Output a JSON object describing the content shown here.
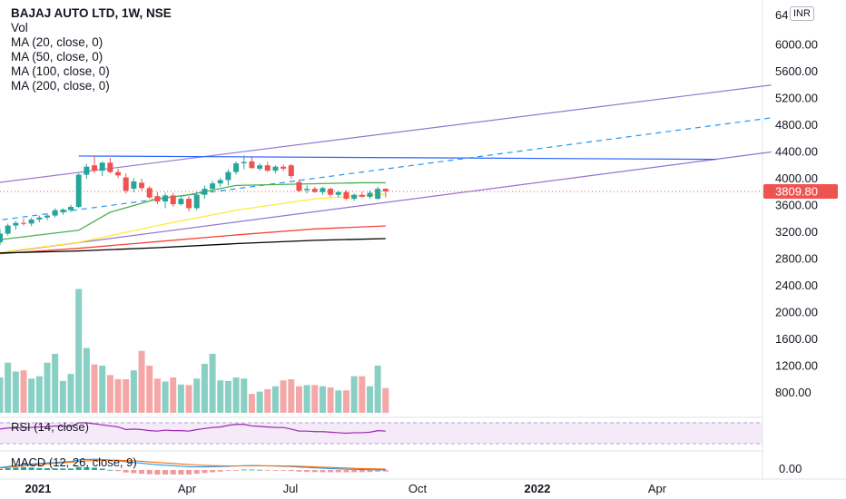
{
  "chart_data": {
    "type": "candlestick",
    "title": "BAJAJ AUTO LTD, 1W, NSE",
    "currency": "INR",
    "last_price": "3809.80",
    "legend": [
      "Vol",
      "MA (20, close, 0)",
      "MA (50, close, 0)",
      "MA (100, close, 0)",
      "MA (200, close, 0)"
    ],
    "y_axis": {
      "ticks": [
        800,
        1200,
        1600,
        2000,
        2400,
        2800,
        3200,
        3600,
        4000,
        4400,
        4800,
        5200,
        5600,
        6000
      ],
      "tick_labels": [
        "800.00",
        "1200.00",
        "1600.00",
        "2000.00",
        "2400.00",
        "2800.00",
        "3200.00",
        "3600.00",
        "4000.00",
        "4400.00",
        "4800.00",
        "5200.00",
        "5600.00",
        "6000.00"
      ],
      "top_partial_label": "64"
    },
    "x_axis": {
      "labels": [
        "2021",
        "Apr",
        "Jul",
        "Oct",
        "2022",
        "Apr"
      ]
    },
    "candles": [
      {
        "o": 3050,
        "h": 3250,
        "l": 3010,
        "c": 3180
      },
      {
        "o": 3180,
        "h": 3330,
        "l": 3150,
        "c": 3300
      },
      {
        "o": 3300,
        "h": 3370,
        "l": 3240,
        "c": 3340
      },
      {
        "o": 3340,
        "h": 3400,
        "l": 3300,
        "c": 3330
      },
      {
        "o": 3330,
        "h": 3420,
        "l": 3290,
        "c": 3390
      },
      {
        "o": 3390,
        "h": 3450,
        "l": 3350,
        "c": 3420
      },
      {
        "o": 3420,
        "h": 3480,
        "l": 3380,
        "c": 3450
      },
      {
        "o": 3450,
        "h": 3560,
        "l": 3420,
        "c": 3530
      },
      {
        "o": 3500,
        "h": 3560,
        "l": 3460,
        "c": 3540
      },
      {
        "o": 3530,
        "h": 3610,
        "l": 3500,
        "c": 3580
      },
      {
        "o": 3580,
        "h": 4080,
        "l": 3560,
        "c": 4060
      },
      {
        "o": 4060,
        "h": 4220,
        "l": 4000,
        "c": 4180
      },
      {
        "o": 4200,
        "h": 4340,
        "l": 4080,
        "c": 4120
      },
      {
        "o": 4120,
        "h": 4260,
        "l": 4040,
        "c": 4240
      },
      {
        "o": 4240,
        "h": 4310,
        "l": 4080,
        "c": 4100
      },
      {
        "o": 4100,
        "h": 4150,
        "l": 4010,
        "c": 4050
      },
      {
        "o": 4020,
        "h": 4080,
        "l": 3780,
        "c": 3820
      },
      {
        "o": 3850,
        "h": 4010,
        "l": 3800,
        "c": 3960
      },
      {
        "o": 3940,
        "h": 4000,
        "l": 3820,
        "c": 3860
      },
      {
        "o": 3860,
        "h": 3890,
        "l": 3700,
        "c": 3720
      },
      {
        "o": 3740,
        "h": 3800,
        "l": 3620,
        "c": 3660
      },
      {
        "o": 3660,
        "h": 3790,
        "l": 3560,
        "c": 3750
      },
      {
        "o": 3750,
        "h": 3790,
        "l": 3580,
        "c": 3620
      },
      {
        "o": 3620,
        "h": 3730,
        "l": 3600,
        "c": 3700
      },
      {
        "o": 3700,
        "h": 3740,
        "l": 3510,
        "c": 3560
      },
      {
        "o": 3560,
        "h": 3800,
        "l": 3530,
        "c": 3760
      },
      {
        "o": 3760,
        "h": 3900,
        "l": 3700,
        "c": 3850
      },
      {
        "o": 3850,
        "h": 3970,
        "l": 3800,
        "c": 3930
      },
      {
        "o": 3930,
        "h": 4010,
        "l": 3880,
        "c": 3980
      },
      {
        "o": 3980,
        "h": 4140,
        "l": 3900,
        "c": 4100
      },
      {
        "o": 4100,
        "h": 4260,
        "l": 4060,
        "c": 4230
      },
      {
        "o": 4230,
        "h": 4350,
        "l": 4140,
        "c": 4250
      },
      {
        "o": 4260,
        "h": 4320,
        "l": 4150,
        "c": 4160
      },
      {
        "o": 4150,
        "h": 4230,
        "l": 4120,
        "c": 4200
      },
      {
        "o": 4200,
        "h": 4250,
        "l": 4100,
        "c": 4120
      },
      {
        "o": 4120,
        "h": 4200,
        "l": 4080,
        "c": 4180
      },
      {
        "o": 4180,
        "h": 4210,
        "l": 4110,
        "c": 4150
      },
      {
        "o": 4200,
        "h": 4220,
        "l": 4000,
        "c": 4040
      },
      {
        "o": 3950,
        "h": 3990,
        "l": 3800,
        "c": 3820
      },
      {
        "o": 3830,
        "h": 3900,
        "l": 3780,
        "c": 3850
      },
      {
        "o": 3850,
        "h": 3880,
        "l": 3790,
        "c": 3800
      },
      {
        "o": 3800,
        "h": 3880,
        "l": 3760,
        "c": 3860
      },
      {
        "o": 3850,
        "h": 3870,
        "l": 3730,
        "c": 3760
      },
      {
        "o": 3760,
        "h": 3820,
        "l": 3720,
        "c": 3800
      },
      {
        "o": 3800,
        "h": 3830,
        "l": 3680,
        "c": 3700
      },
      {
        "o": 3700,
        "h": 3780,
        "l": 3670,
        "c": 3760
      },
      {
        "o": 3760,
        "h": 3810,
        "l": 3720,
        "c": 3730
      },
      {
        "o": 3730,
        "h": 3820,
        "l": 3700,
        "c": 3790
      },
      {
        "o": 3700,
        "h": 3880,
        "l": 3690,
        "c": 3850
      },
      {
        "o": 3850,
        "h": 3860,
        "l": 3720,
        "c": 3810
      }
    ],
    "volume_relative": [
      0.6,
      0.85,
      0.7,
      0.72,
      0.58,
      0.62,
      0.85,
      1.0,
      0.54,
      0.66,
      2.1,
      1.1,
      0.82,
      0.8,
      0.64,
      0.57,
      0.57,
      0.72,
      1.05,
      0.8,
      0.58,
      0.53,
      0.6,
      0.48,
      0.47,
      0.58,
      0.83,
      1.0,
      0.55,
      0.54,
      0.6,
      0.58,
      0.32,
      0.36,
      0.4,
      0.45,
      0.55,
      0.57,
      0.45,
      0.47,
      0.47,
      0.45,
      0.43,
      0.38,
      0.38,
      0.62,
      0.62,
      0.45,
      0.8,
      0.42
    ],
    "moving_averages": [
      {
        "name": "MA (20, close, 0)",
        "color": "#4caf50",
        "x": [
          0,
          10,
          14,
          20,
          24,
          30,
          38,
          46,
          49
        ],
        "y": [
          3090,
          3230,
          3500,
          3700,
          3760,
          3900,
          3920,
          3940,
          3940
        ]
      },
      {
        "name": "MA (50, close, 0)",
        "color": "#ffeb3b",
        "x": [
          0,
          10,
          20,
          30,
          40,
          49
        ],
        "y": [
          2900,
          3050,
          3300,
          3530,
          3700,
          3770
        ]
      },
      {
        "name": "MA (100, close, 0)",
        "color": "#f44336",
        "x": [
          0,
          10,
          20,
          30,
          40,
          49
        ],
        "y": [
          2880,
          2960,
          3060,
          3160,
          3250,
          3295
        ]
      },
      {
        "name": "MA (200, close, 0)",
        "color": "#000000",
        "x": [
          0,
          10,
          20,
          30,
          40,
          49
        ],
        "y": [
          2890,
          2920,
          2970,
          3030,
          3080,
          3105
        ]
      }
    ],
    "trend_lines": [
      {
        "kind": "channel-top",
        "color": "#9575cd",
        "from": {
          "bar": -8.5,
          "price": 3820
        },
        "to": {
          "bar": 98,
          "price": 5400
        }
      },
      {
        "kind": "channel-bottom",
        "color": "#9575cd",
        "from": {
          "bar": -8.5,
          "price": 2760
        },
        "to": {
          "bar": 98,
          "price": 4400
        }
      },
      {
        "kind": "resistance",
        "color": "#2962ff",
        "from": {
          "bar": 10,
          "price": 4340
        },
        "to": {
          "bar": 91,
          "price": 4290
        }
      },
      {
        "kind": "mid-dashed",
        "color": "#2196f3",
        "from": {
          "bar": -8.5,
          "price": 3250
        },
        "to": {
          "bar": 98,
          "price": 4910
        }
      }
    ],
    "rsi": {
      "label": "RSI (14, close)",
      "color": "#9c27b0",
      "values": [
        58,
        60,
        60,
        61,
        61,
        62,
        62,
        64,
        63,
        63,
        70,
        70,
        68,
        66,
        64,
        62,
        57,
        58,
        57,
        55,
        54,
        56,
        55,
        55,
        54,
        57,
        59,
        61,
        62,
        65,
        67,
        67,
        64,
        63,
        62,
        61,
        61,
        58,
        54,
        54,
        53,
        53,
        52,
        51,
        50,
        51,
        51,
        52,
        55,
        54
      ]
    },
    "macd": {
      "label": "MACD (12, 26, close, 9)",
      "zero_label": "0.00",
      "macd_line": {
        "color": "#2196f3",
        "values": [
          50,
          70,
          90,
          110,
          120,
          130,
          140,
          150,
          160,
          170,
          200,
          210,
          215,
          210,
          200,
          185,
          165,
          150,
          135,
          120,
          105,
          95,
          85,
          75,
          65,
          62,
          62,
          64,
          68,
          74,
          80,
          86,
          88,
          86,
          82,
          78,
          74,
          68,
          58,
          50,
          42,
          35,
          28,
          22,
          16,
          12,
          8,
          5,
          4,
          3
        ]
      },
      "signal_line": {
        "color": "#ff6d00",
        "values": [
          40,
          52,
          66,
          82,
          96,
          110,
          122,
          134,
          145,
          155,
          170,
          182,
          192,
          197,
          199,
          196,
          190,
          182,
          173,
          163,
          151,
          140,
          130,
          120,
          110,
          100,
          92,
          87,
          84,
          82,
          82,
          82,
          84,
          84,
          84,
          83,
          81,
          78,
          74,
          69,
          63,
          57,
          51,
          45,
          39,
          34,
          29,
          25,
          21,
          18
        ]
      }
    }
  }
}
